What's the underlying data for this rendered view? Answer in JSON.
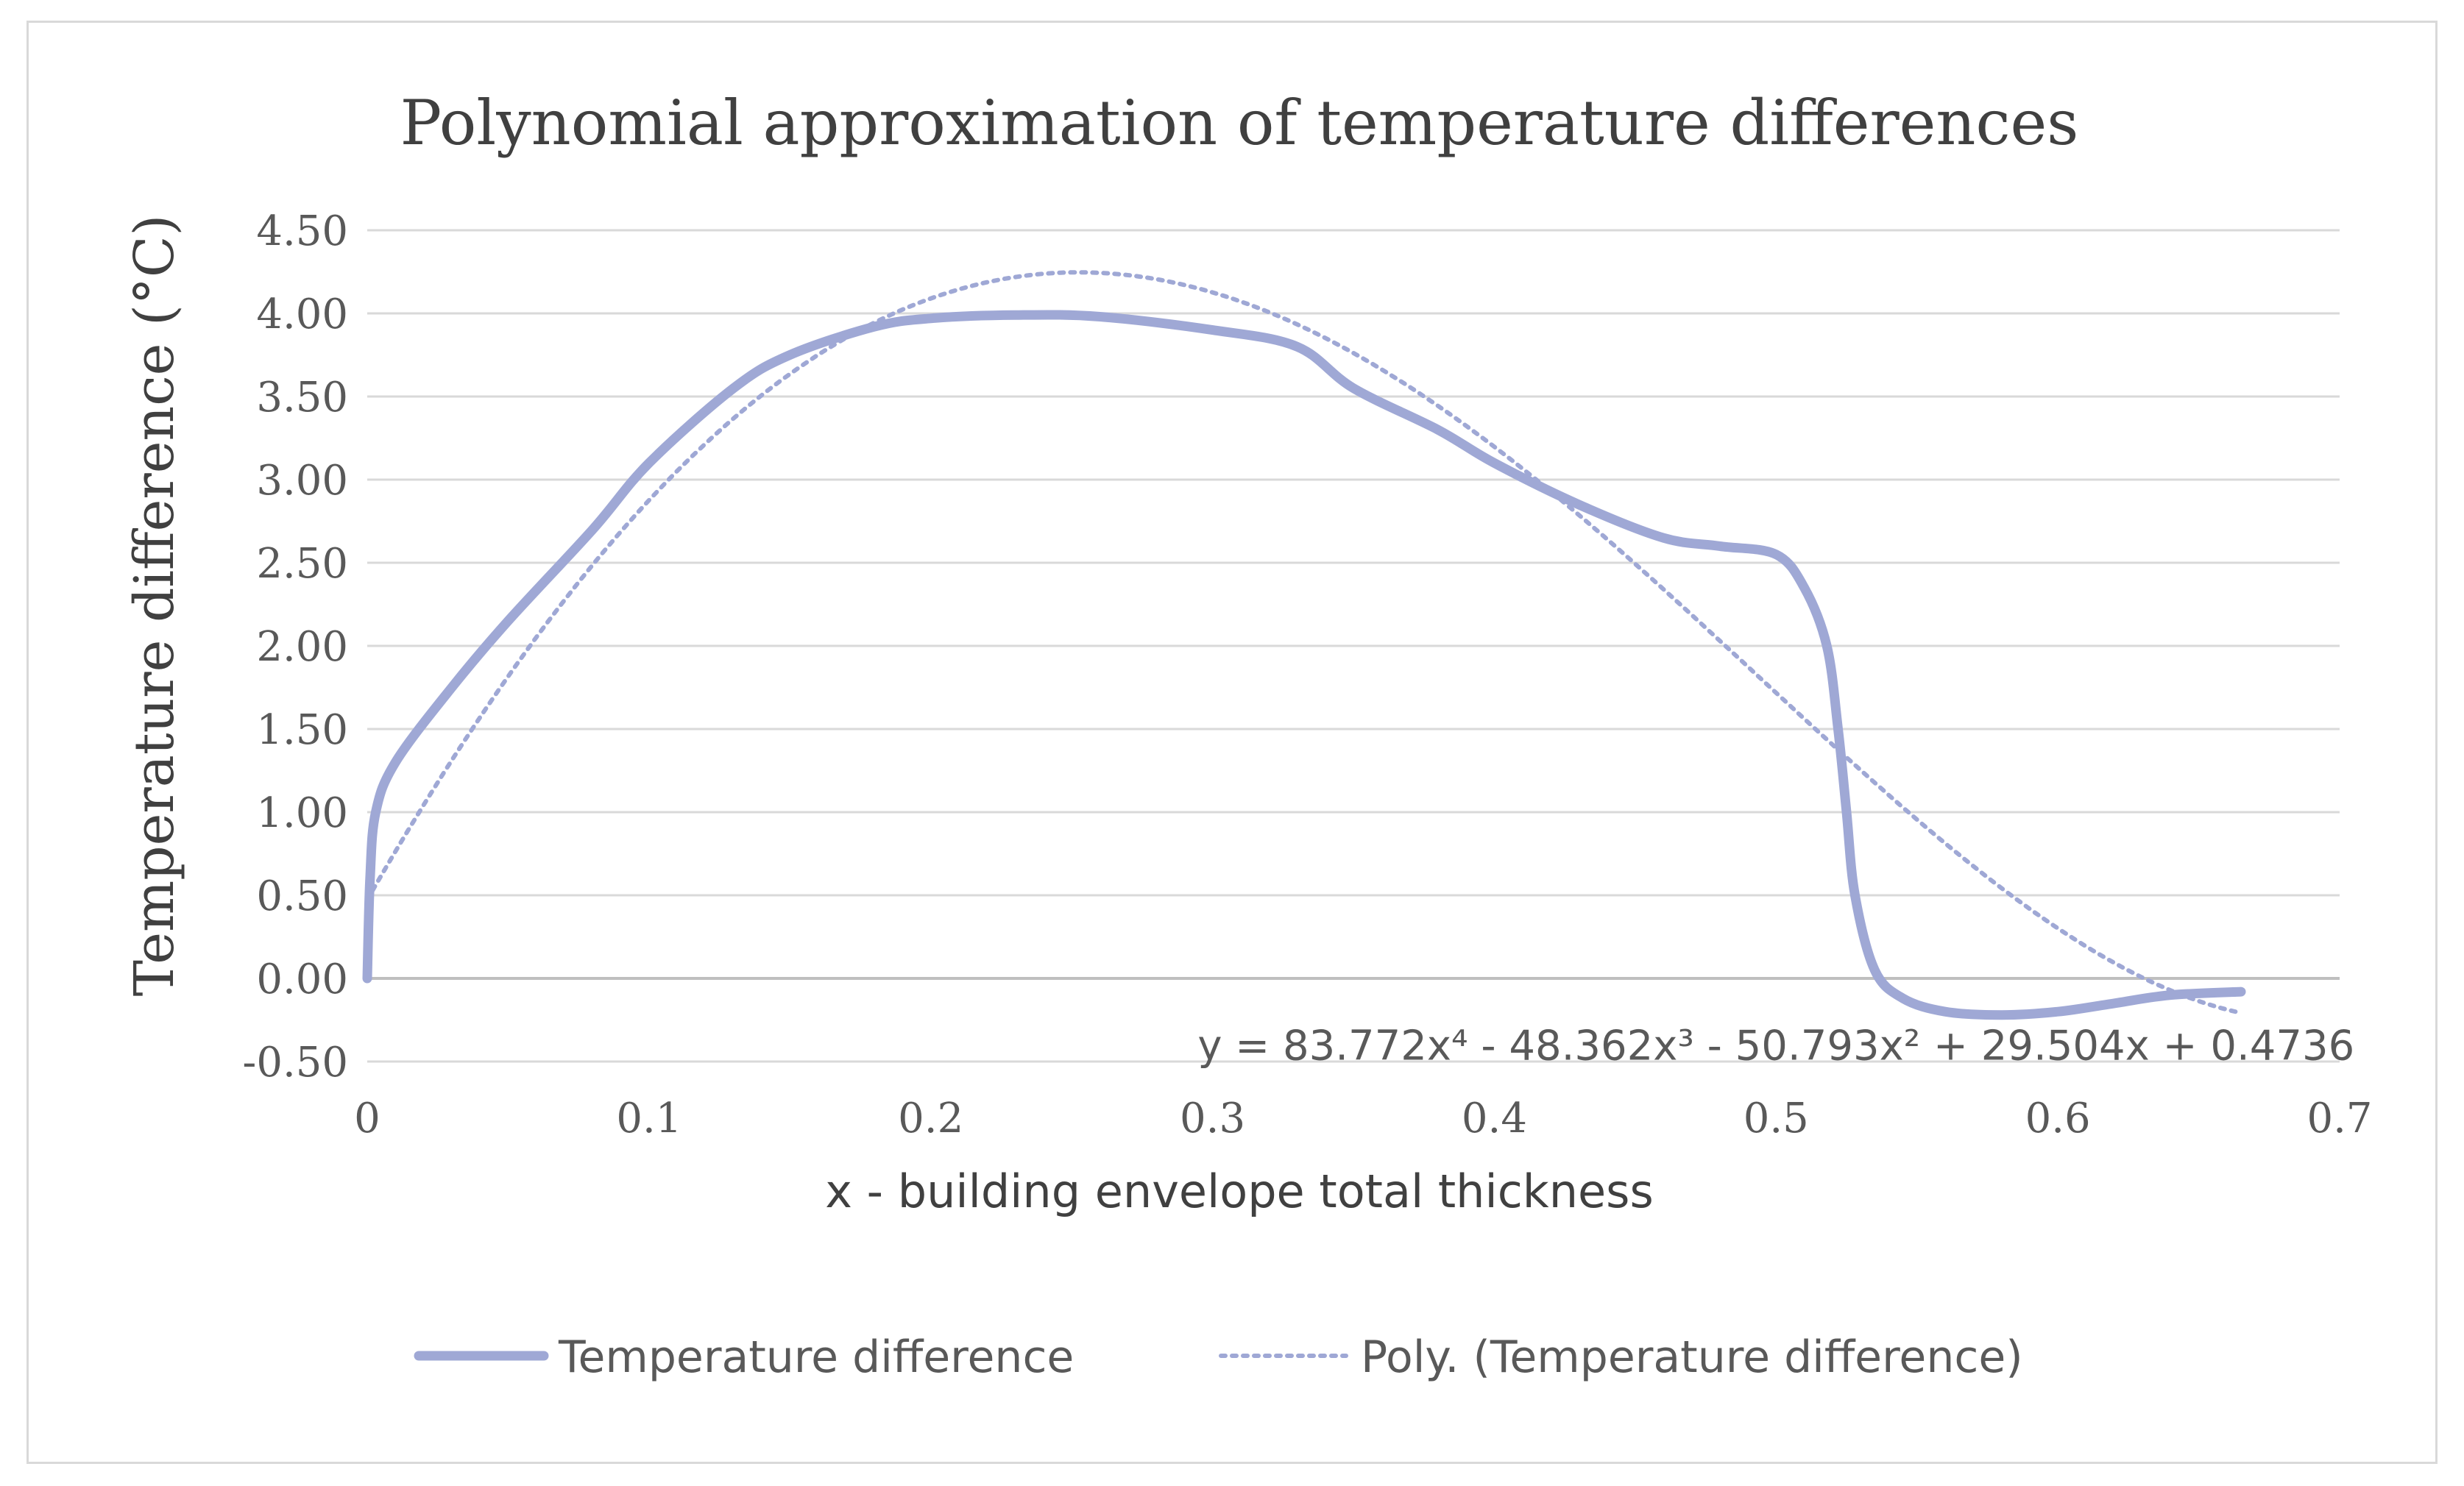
{
  "chart_data": {
    "type": "line",
    "title": "Polynomial approximation of temperature differences",
    "xlabel": "x - building envelope total thickness",
    "ylabel": "Temperature difference (°C)",
    "xlim": [
      0,
      0.7
    ],
    "ylim": [
      -0.5,
      4.5
    ],
    "x_ticks": [
      "0",
      "0.1",
      "0.2",
      "0.3",
      "0.4",
      "0.5",
      "0.6",
      "0.7"
    ],
    "y_ticks": [
      "-0.50",
      "0.00",
      "0.50",
      "1.00",
      "1.50",
      "2.00",
      "2.50",
      "3.00",
      "3.50",
      "4.00",
      "4.50"
    ],
    "grid": true,
    "legend_position": "bottom",
    "series": [
      {
        "name": "Temperature difference",
        "style": "solid",
        "color": "#9fa8d5",
        "x": [
          0,
          0.001,
          0.003,
          0.01,
          0.03,
          0.05,
          0.08,
          0.1,
          0.13,
          0.15,
          0.18,
          0.2,
          0.23,
          0.26,
          0.3,
          0.33,
          0.35,
          0.38,
          0.4,
          0.43,
          0.46,
          0.48,
          0.5,
          0.51,
          0.518,
          0.522,
          0.525,
          0.528,
          0.535,
          0.545,
          0.56,
          0.58,
          0.6,
          0.62,
          0.64,
          0.665
        ],
        "y": [
          0.0,
          0.6,
          1.0,
          1.3,
          1.75,
          2.15,
          2.7,
          3.1,
          3.55,
          3.75,
          3.92,
          3.97,
          3.99,
          3.98,
          3.9,
          3.8,
          3.55,
          3.3,
          3.1,
          2.85,
          2.65,
          2.6,
          2.55,
          2.35,
          2.0,
          1.5,
          1.0,
          0.5,
          0.05,
          -0.12,
          -0.2,
          -0.22,
          -0.2,
          -0.15,
          -0.1,
          -0.08
        ]
      },
      {
        "name": "Poly. (Temperature difference)",
        "style": "dotted",
        "color": "#9fa8d5",
        "coefficients": [
          83.772,
          -48.362,
          -50.793,
          29.504,
          0.4736
        ],
        "x_range": [
          0,
          0.665
        ]
      }
    ],
    "annotations": [
      {
        "type": "trendline-equation",
        "text": "y = 83.772x⁴ - 48.362x³ - 50.793x² + 29.504x + 0.4736",
        "x": 0.5,
        "y": -0.4
      }
    ]
  }
}
